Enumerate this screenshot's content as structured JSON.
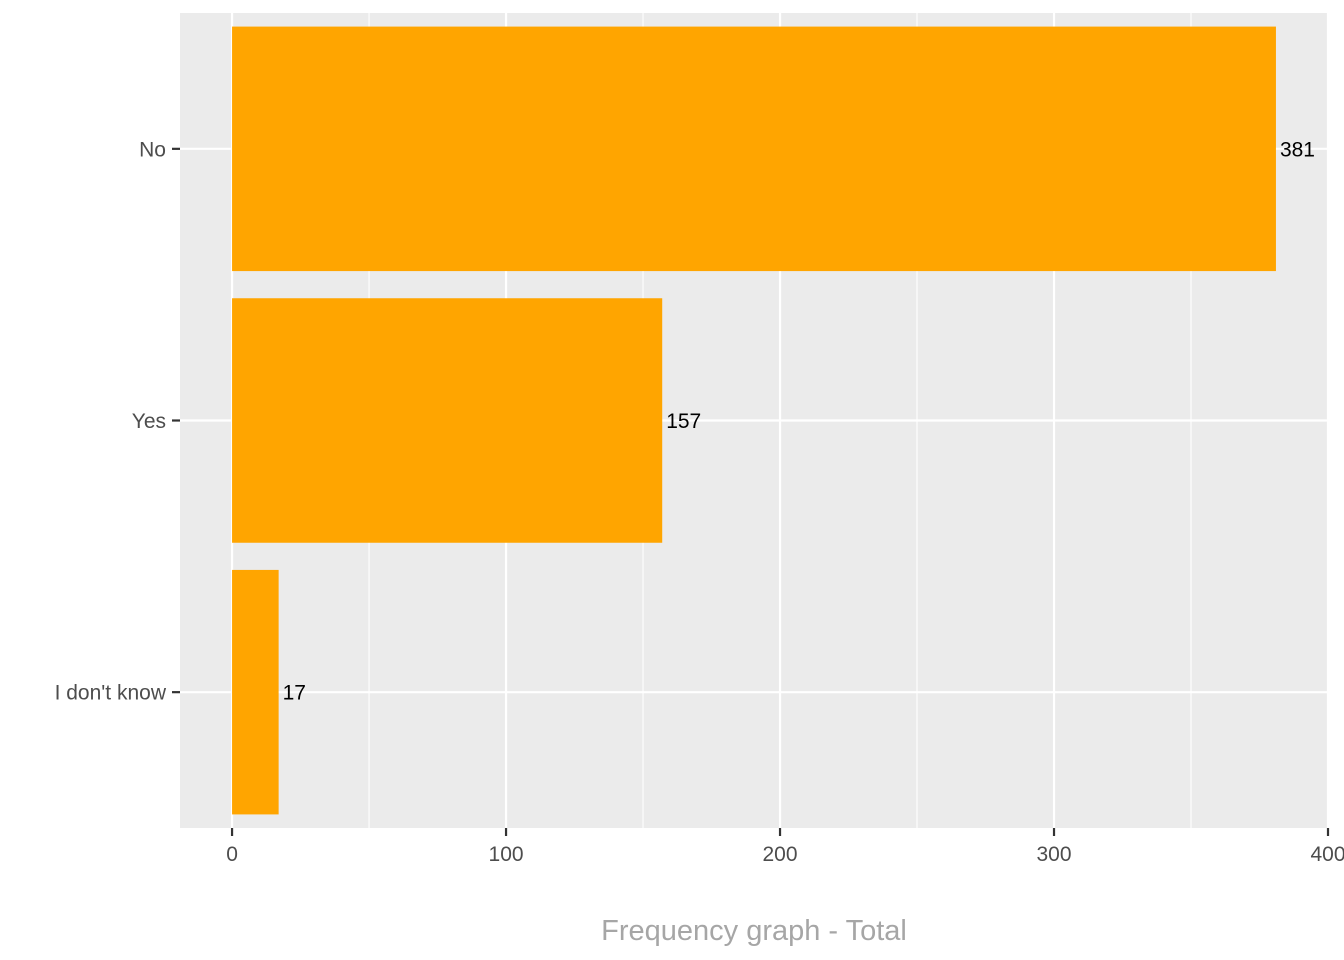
{
  "chart_data": {
    "type": "bar",
    "orientation": "horizontal",
    "title": "",
    "xlabel": "Frequency graph - Total",
    "ylabel": "",
    "categories": [
      "I don't know",
      "Yes",
      "No"
    ],
    "values": [
      17,
      157,
      381
    ],
    "data_labels": [
      "17",
      "157",
      "381"
    ],
    "xlim": [
      -19,
      400
    ],
    "x_ticks": [
      0,
      100,
      200,
      300,
      400
    ],
    "x_tick_labels": [
      "0",
      "100",
      "200",
      "300",
      "400"
    ],
    "grid": true,
    "legend": "none",
    "colors": {
      "bar": "#FFA500",
      "panel_background": "#EBEBEB",
      "grid": "#FFFFFF",
      "tick_text": "#4D4D4D",
      "axis_title": "#A6A6A6",
      "data_label": "#000000"
    }
  }
}
